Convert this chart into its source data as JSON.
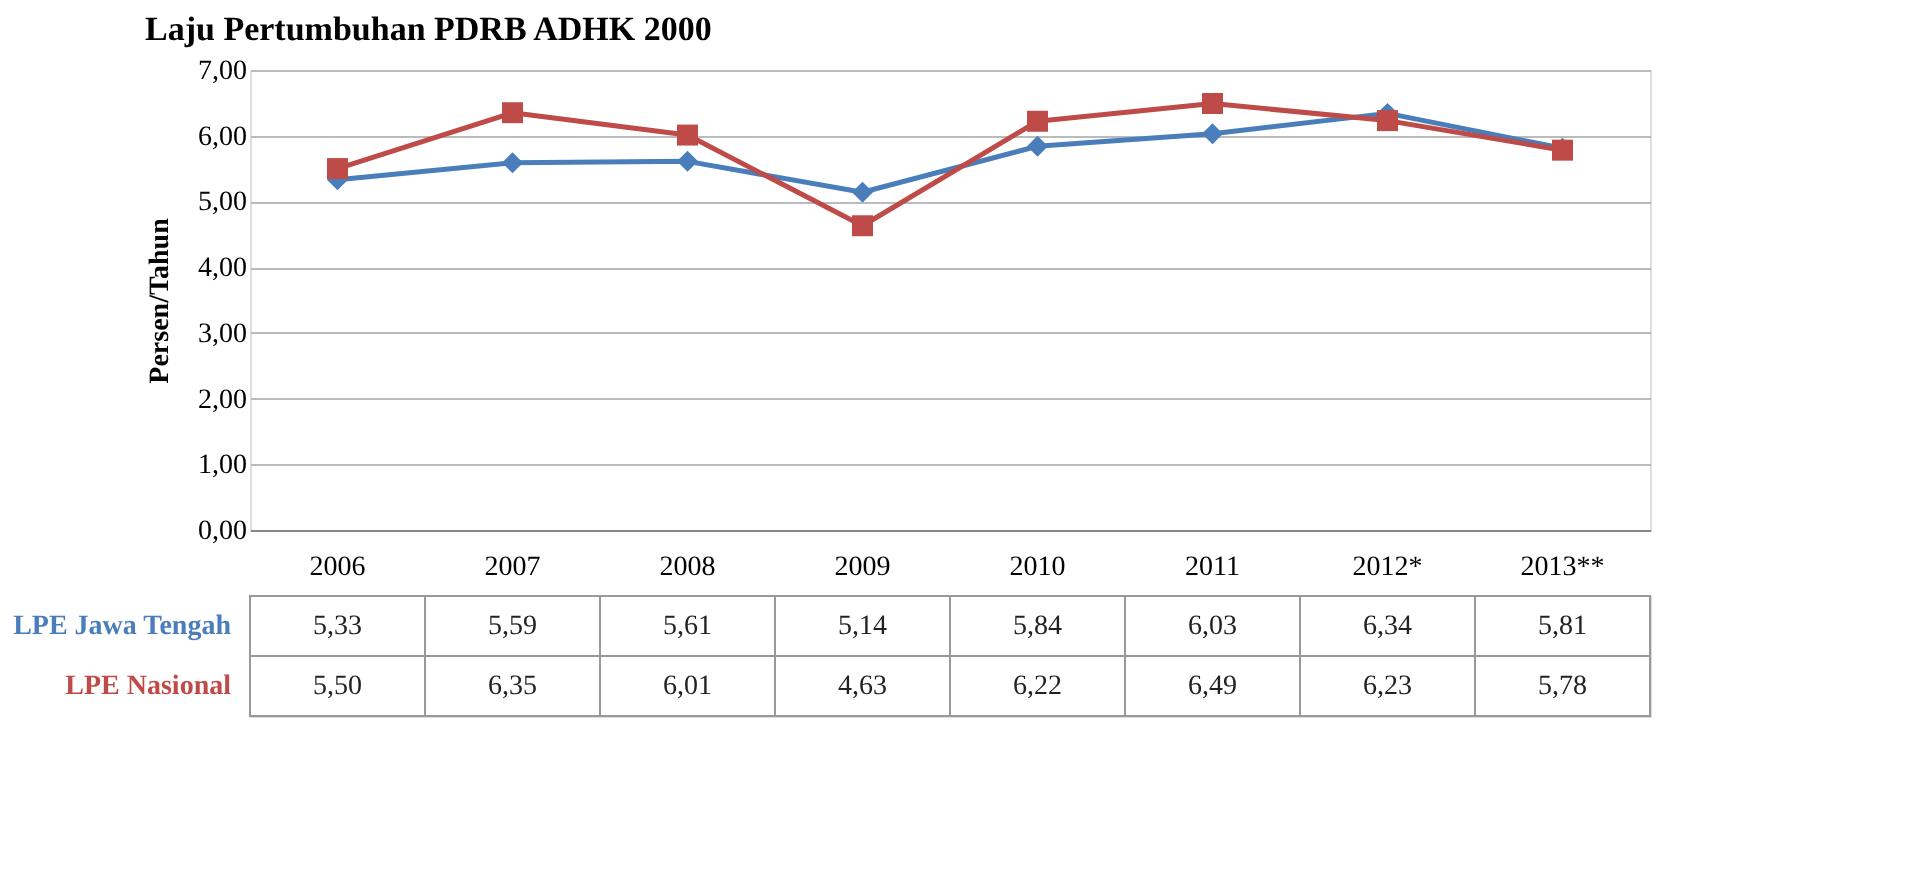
{
  "chart_data": {
    "type": "line",
    "title": "Laju Pertumbuhan PDRB ADHK 2000",
    "ylabel": "Persen/Tahun",
    "categories": [
      "2006",
      "2007",
      "2008",
      "2009",
      "2010",
      "2011",
      "2012*",
      "2013**"
    ],
    "series": [
      {
        "name": "LPE Jawa Tengah",
        "color": "#4a7ebb",
        "marker": "diamond",
        "values": [
          5.33,
          5.59,
          5.61,
          5.14,
          5.84,
          6.03,
          6.34,
          5.81
        ],
        "value_labels": [
          "5,33",
          "5,59",
          "5,61",
          "5,14",
          "5,84",
          "6,03",
          "6,34",
          "5,81"
        ]
      },
      {
        "name": "LPE Nasional",
        "color": "#be4b48",
        "marker": "square",
        "values": [
          5.5,
          6.35,
          6.01,
          4.63,
          6.22,
          6.49,
          6.23,
          5.78
        ],
        "value_labels": [
          "5,50",
          "6,35",
          "6,01",
          "4,63",
          "6,22",
          "6,49",
          "6,23",
          "5,78"
        ]
      }
    ],
    "ylim": [
      0,
      7
    ],
    "yticks": [
      {
        "value": 0,
        "label": "0,00"
      },
      {
        "value": 1,
        "label": "1,00"
      },
      {
        "value": 2,
        "label": "2,00"
      },
      {
        "value": 3,
        "label": "3,00"
      },
      {
        "value": 4,
        "label": "4,00"
      },
      {
        "value": 5,
        "label": "5,00"
      },
      {
        "value": 6,
        "label": "6,00"
      },
      {
        "value": 7,
        "label": "7,00"
      }
    ],
    "grid": "y",
    "line_style": "solid"
  }
}
